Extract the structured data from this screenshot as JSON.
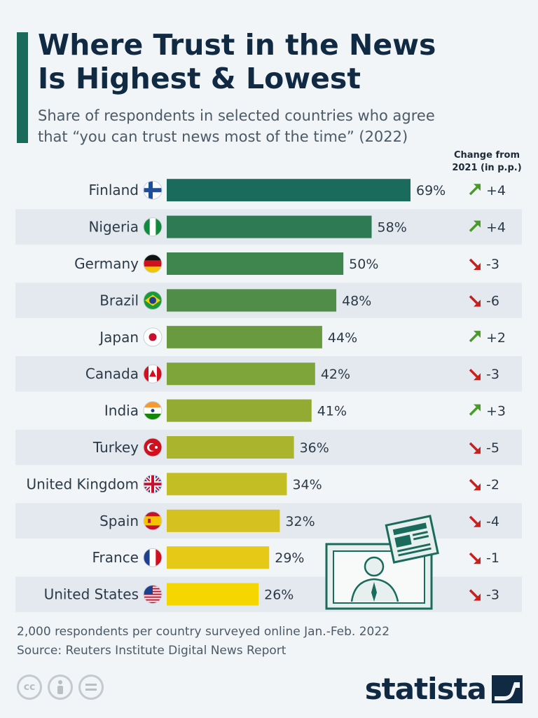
{
  "header": {
    "title_line1": "Where Trust in the News",
    "title_line2": "Is Highest & Lowest",
    "subtitle_line1": "Share of respondents in selected countries who agree",
    "subtitle_line2": "that “you can trust news most of the time” (2022)",
    "change_header_line1": "Change from",
    "change_header_line2": "2021 (in p.p.)"
  },
  "chart_data": {
    "type": "bar",
    "orientation": "horizontal",
    "categories": [
      "Finland",
      "Nigeria",
      "Germany",
      "Brazil",
      "Japan",
      "Canada",
      "India",
      "Turkey",
      "United Kingdom",
      "Spain",
      "France",
      "United States"
    ],
    "values": [
      69,
      58,
      50,
      48,
      44,
      42,
      41,
      36,
      34,
      32,
      29,
      26
    ],
    "value_labels": [
      "69%",
      "58%",
      "50%",
      "48%",
      "44%",
      "42%",
      "41%",
      "36%",
      "34%",
      "32%",
      "29%",
      "26%"
    ],
    "changes": [
      "+4",
      "+4",
      "-3",
      "-6",
      "+2",
      "-3",
      "+3",
      "-5",
      "-2",
      "-4",
      "-1",
      "-3"
    ],
    "unit": "%",
    "xlim": [
      0,
      69
    ],
    "colors": [
      "#1a6b5c",
      "#2e7a55",
      "#3f854e",
      "#4f8d48",
      "#6a9a3f",
      "#7ea53a",
      "#93ab33",
      "#aab42c",
      "#c4be25",
      "#d5c11f",
      "#e6c816",
      "#f6d600"
    ],
    "up_color": "#4a9a2a",
    "down_color": "#c8201e"
  },
  "footer": {
    "note": "2,000 respondents per country surveyed online Jan.-Feb. 2022",
    "source": "Source: Reuters Institute Digital News Report",
    "license_icons": [
      "cc-icon",
      "attribution-icon",
      "noderivs-icon"
    ],
    "logo": "statista"
  }
}
